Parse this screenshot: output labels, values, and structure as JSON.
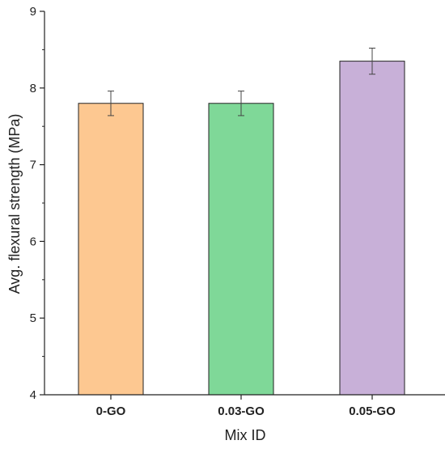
{
  "chart_data": {
    "type": "bar",
    "categories": [
      "0-GO",
      "0.03-GO",
      "0.05-GO"
    ],
    "values": [
      7.8,
      7.8,
      8.35
    ],
    "errors": [
      0.16,
      0.16,
      0.17
    ],
    "colors": [
      "#fdc891",
      "#7fd898",
      "#c8b0d8"
    ],
    "xlabel": "Mix ID",
    "ylabel": "Avg. flexural strength (MPa)",
    "ylim": [
      4,
      9
    ],
    "yticks": [
      "4",
      "5",
      "6",
      "7",
      "8",
      "9"
    ],
    "grid": false
  }
}
